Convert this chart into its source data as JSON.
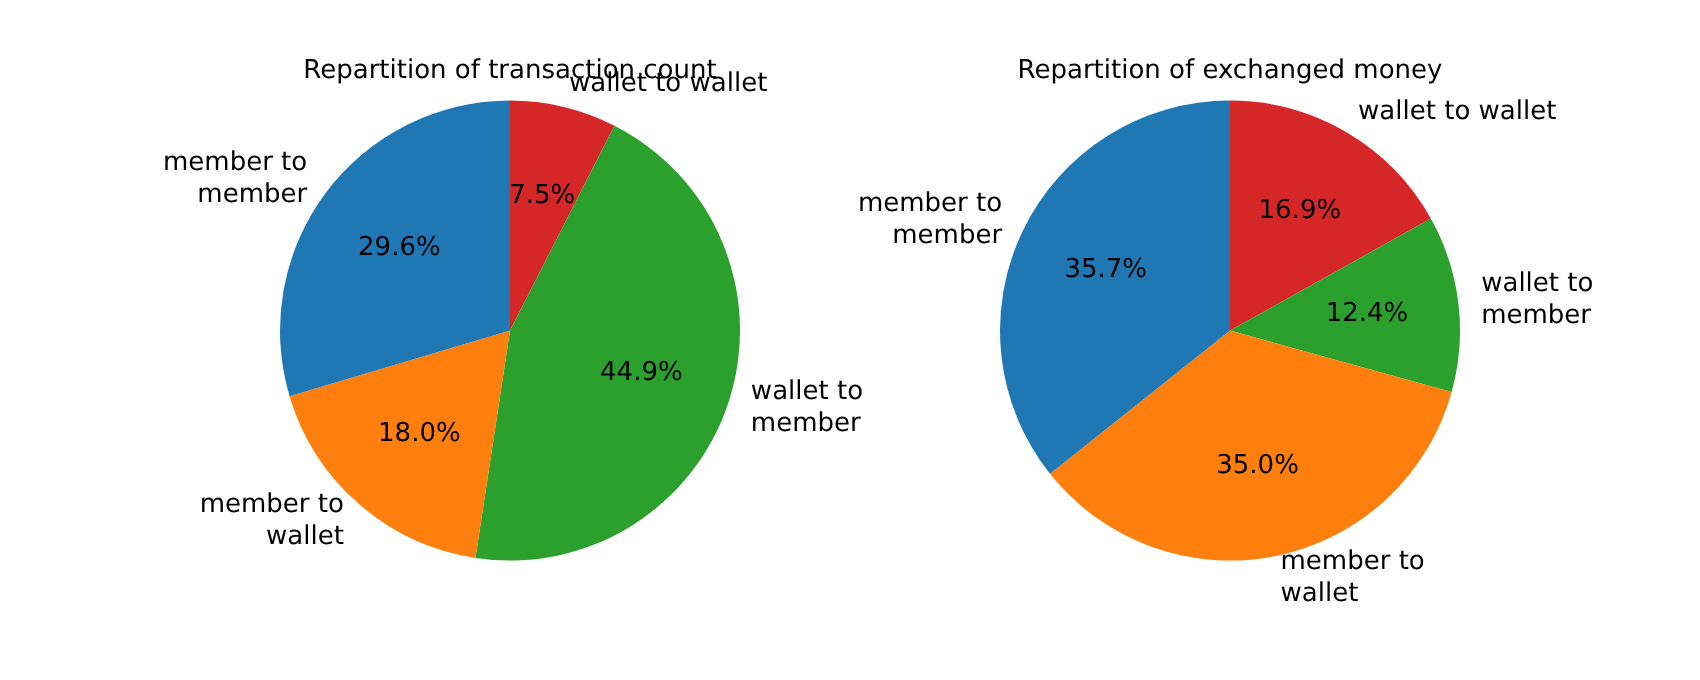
{
  "chart_data": [
    {
      "type": "pie",
      "title": "Repartition of transaction count",
      "categories": [
        "wallet to wallet",
        "wallet to member",
        "member to wallet",
        "member to member"
      ],
      "values": [
        7.5,
        44.9,
        18.0,
        29.6
      ],
      "value_labels": [
        "7.5%",
        "44.9%",
        "18.0%",
        "29.6%"
      ],
      "colors": [
        "#d62728",
        "#2ca02c",
        "#ff7f0e",
        "#1f77b4"
      ],
      "legend": false
    },
    {
      "type": "pie",
      "title": "Repartition of exchanged money",
      "categories": [
        "wallet to wallet",
        "wallet to member",
        "member to wallet",
        "member to member"
      ],
      "values": [
        16.9,
        12.4,
        35.0,
        35.7
      ],
      "value_labels": [
        "16.9%",
        "12.4%",
        "35.0%",
        "35.7%"
      ],
      "colors": [
        "#d62728",
        "#2ca02c",
        "#ff7f0e",
        "#1f77b4"
      ],
      "legend": false
    }
  ]
}
